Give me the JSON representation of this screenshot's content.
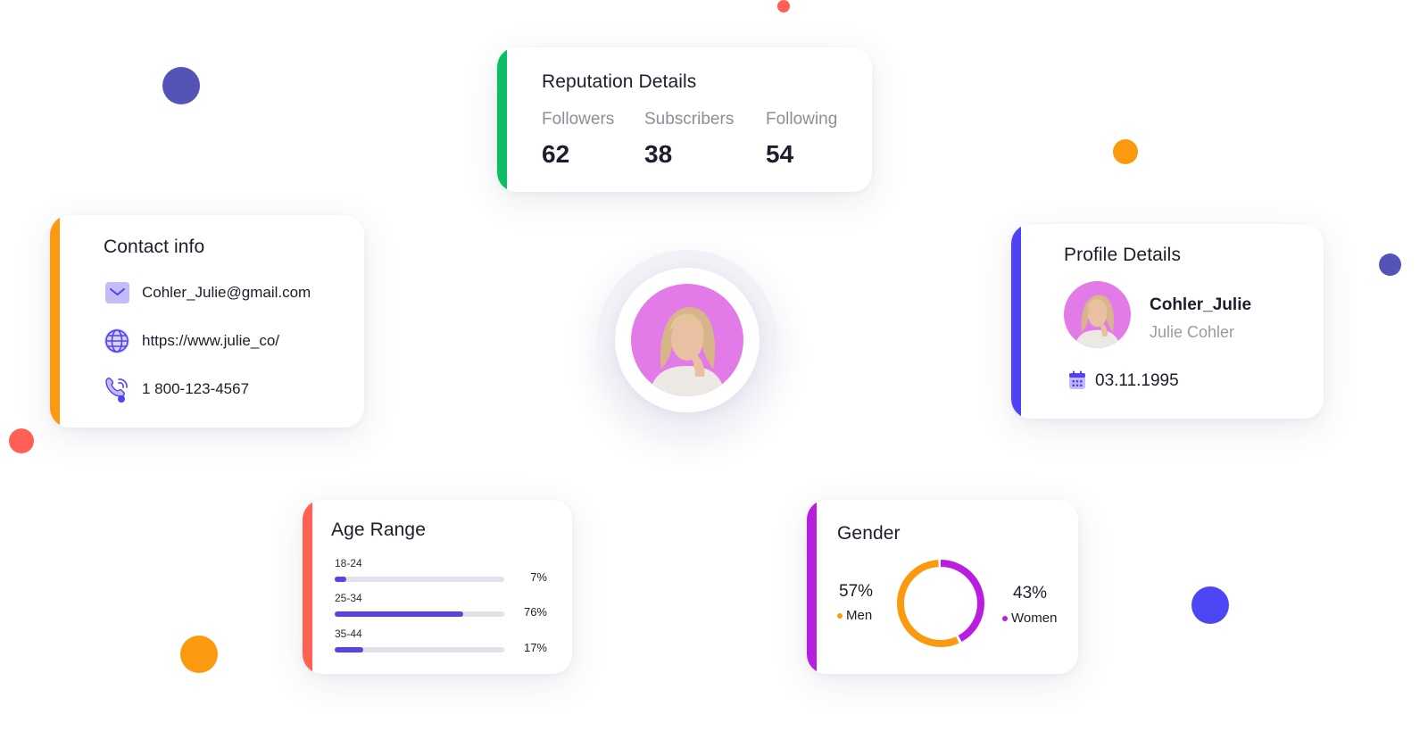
{
  "colors": {
    "green": "#0cbf64",
    "orange": "#fb9a0e",
    "indigo": "#5042f5",
    "coral": "#ff6252",
    "purple": "#b81ee0",
    "bar_fill": "#5545e6",
    "avatar_bg": "#e27ae8"
  },
  "reputation": {
    "title": "Reputation Details",
    "stats": [
      {
        "label": "Followers",
        "value": "62"
      },
      {
        "label": "Subscribers",
        "value": "38"
      },
      {
        "label": "Following",
        "value": "54"
      }
    ]
  },
  "contact": {
    "title": "Contact info",
    "items": [
      {
        "icon": "envelope-icon",
        "text": "Cohler_Julie@gmail.com"
      },
      {
        "icon": "globe-icon",
        "text": "https://www.julie_co/"
      },
      {
        "icon": "phone-icon",
        "text": "1 800-123-4567"
      }
    ]
  },
  "profile": {
    "title": "Profile Details",
    "username": "Cohler_Julie",
    "full_name": "Julie Cohler",
    "date_icon": "calendar-icon",
    "date": "03.11.1995"
  },
  "age": {
    "title": "Age Range",
    "rows": [
      {
        "label": "18-24",
        "value": 7,
        "pct": "7%"
      },
      {
        "label": "25-34",
        "value": 76,
        "pct": "76%"
      },
      {
        "label": "35-44",
        "value": 17,
        "pct": "17%"
      }
    ]
  },
  "gender": {
    "title": "Gender",
    "men": {
      "pct": "57%",
      "label": "Men",
      "value": 57
    },
    "women": {
      "pct": "43%",
      "label": "Women",
      "value": 43
    }
  }
}
